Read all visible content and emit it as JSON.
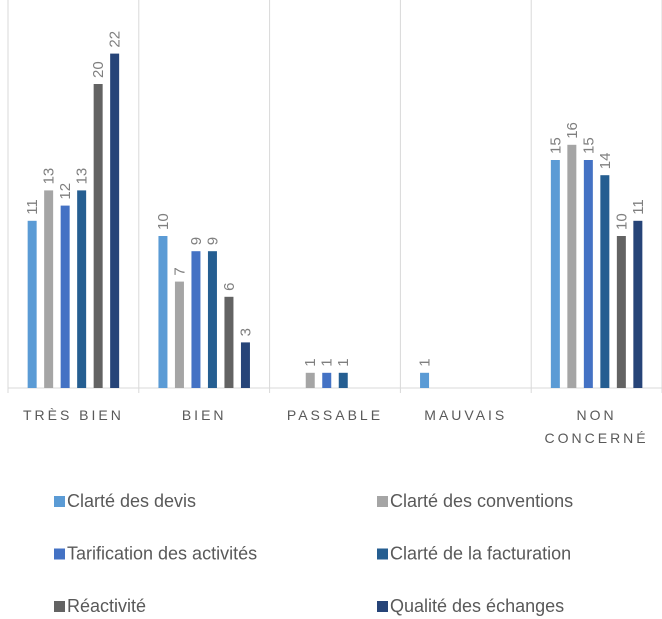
{
  "chart_data": {
    "type": "bar",
    "categories": [
      "TRÈS BIEN",
      "BIEN",
      "PASSABLE",
      "MAUVAIS",
      "NON CONCERNÉ"
    ],
    "series": [
      {
        "name": "Clarté des devis",
        "color": "#5b9bd5",
        "values": [
          11,
          10,
          null,
          1,
          15
        ]
      },
      {
        "name": "Clarté des conventions",
        "color": "#a5a5a5",
        "values": [
          13,
          7,
          1,
          null,
          16
        ]
      },
      {
        "name": "Tarification des activités",
        "color": "#4472c4",
        "values": [
          12,
          9,
          1,
          null,
          15
        ]
      },
      {
        "name": "Clarté de la facturation",
        "color": "#255e91",
        "values": [
          13,
          9,
          1,
          null,
          14
        ]
      },
      {
        "name": "Réactivité",
        "color": "#636363",
        "values": [
          20,
          6,
          null,
          null,
          10
        ]
      },
      {
        "name": "Qualité des échanges",
        "color": "#264478",
        "values": [
          22,
          3,
          null,
          null,
          11
        ]
      }
    ],
    "ylim": [
      0,
      25
    ]
  }
}
